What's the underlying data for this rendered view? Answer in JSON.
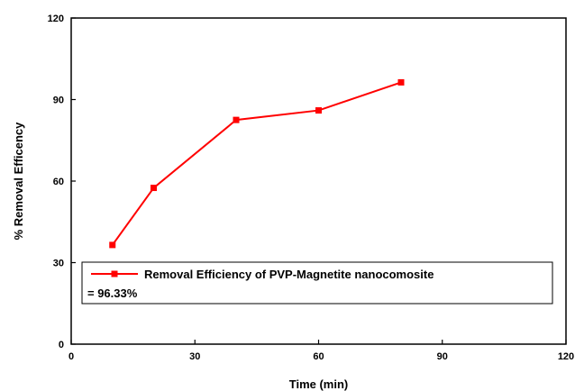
{
  "chart_data": {
    "type": "line",
    "xlabel": "Time (min)",
    "ylabel": "% Removal Efficency",
    "xlim": [
      0,
      120
    ],
    "ylim": [
      0,
      120
    ],
    "xticks": [
      0,
      30,
      60,
      90,
      120
    ],
    "yticks": [
      0,
      30,
      60,
      90,
      120
    ],
    "grid": false,
    "legend_position": "bottom-right",
    "series": [
      {
        "name": "Removal Efficiency of PVP-Magnetite nanocomosite",
        "x": [
          10,
          20,
          40,
          60,
          80
        ],
        "y": [
          36.5,
          57.5,
          82.5,
          86,
          96.33
        ],
        "color": "#ff0000",
        "marker": "square"
      }
    ],
    "legend_extra": "= 96.33%"
  }
}
